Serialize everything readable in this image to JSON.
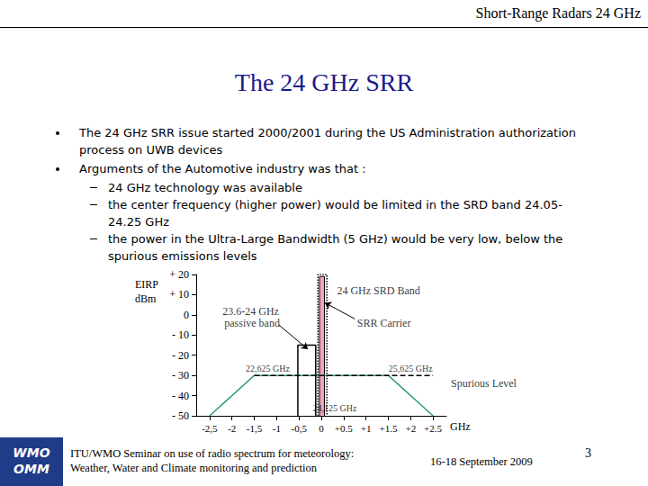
{
  "header": "Short-Range Radars 24 GHz",
  "title": "The 24 GHz SRR",
  "bullets": [
    {
      "text": "The 24 GHz SRR issue started 2000/2001 during the US Administration authorization process on UWB devices",
      "sub": []
    },
    {
      "text": "Arguments of the Automotive industry was that :",
      "sub": [
        "24 GHz technology was available",
        "the center frequency (higher power) would be limited in the SRD band 24.05-24.25 GHz",
        "the power in the Ultra-Large Bandwidth (5 GHz) would be very low, below the spurious emissions levels"
      ]
    }
  ],
  "chart_data": {
    "type": "line",
    "x_label": "GHz",
    "y_label": "EIRP dBm",
    "xlim": [
      -2.8,
      2.8
    ],
    "xticks": [
      {
        "value": -2.5,
        "label": "-2,5"
      },
      -2,
      {
        "value": -1.5,
        "label": "-1,5"
      },
      -1,
      {
        "value": -0.5,
        "label": "-0,5"
      },
      0,
      {
        "value": 0.5,
        "label": "+0.5"
      },
      {
        "value": 1,
        "label": "+1"
      },
      {
        "value": 1.5,
        "label": "+1.5"
      },
      {
        "value": 2,
        "label": "+2"
      },
      {
        "value": 2.5,
        "label": "+2.5"
      }
    ],
    "ylim": [
      -50,
      20
    ],
    "yticks": [
      {
        "value": -50,
        "label": "- 50"
      },
      {
        "value": -40,
        "label": "- 40"
      },
      {
        "value": -30,
        "label": "- 30"
      },
      {
        "value": -20,
        "label": "- 20"
      },
      {
        "value": -10,
        "label": "- 10"
      },
      0,
      {
        "value": 10,
        "label": "+ 10"
      },
      {
        "value": 20,
        "label": "+ 20"
      }
    ],
    "grid": false,
    "series": [
      {
        "x": [
          -2.5,
          -1.5,
          1.5,
          2.5
        ],
        "values": [
          -50,
          -30,
          -30,
          -50
        ],
        "color": "#2e9e7a",
        "line_style": "solid"
      },
      {
        "x": [
          -1.5,
          2.5
        ],
        "values": [
          -30,
          -30
        ],
        "color": "#000000",
        "line_style": "dashed"
      },
      {
        "x": [
          -0.525,
          -0.525,
          -0.125,
          -0.125
        ],
        "values": [
          -50,
          -15,
          -15,
          -50
        ],
        "color": "#000000",
        "line_style": "solid"
      },
      {
        "x": [
          -0.075,
          -0.075,
          0.125,
          0.125
        ],
        "values": [
          -50,
          20,
          20,
          -50
        ],
        "color": "#000000",
        "line_style": "dotted"
      },
      {
        "x": [
          -0.04,
          -0.04,
          0.07,
          0.07
        ],
        "values": [
          -50,
          19,
          19,
          -50
        ],
        "color": "#f2a6b8",
        "line_style": "solid",
        "type": "area"
      }
    ],
    "annotations": [
      "24 GHz SRD Band",
      "23.6-24 GHz passive band",
      "SRR Carrier",
      "22,625 GHz",
      "25,625 GHz",
      "Spurious Level",
      "24,125 GHz"
    ]
  },
  "logo": [
    "WMO",
    "OMM"
  ],
  "footer": [
    "ITU/WMO Seminar on use of radio spectrum for meteorology:",
    "Weather, Water and Climate monitoring and prediction"
  ],
  "date": "16-18 September 2009",
  "page": "3"
}
